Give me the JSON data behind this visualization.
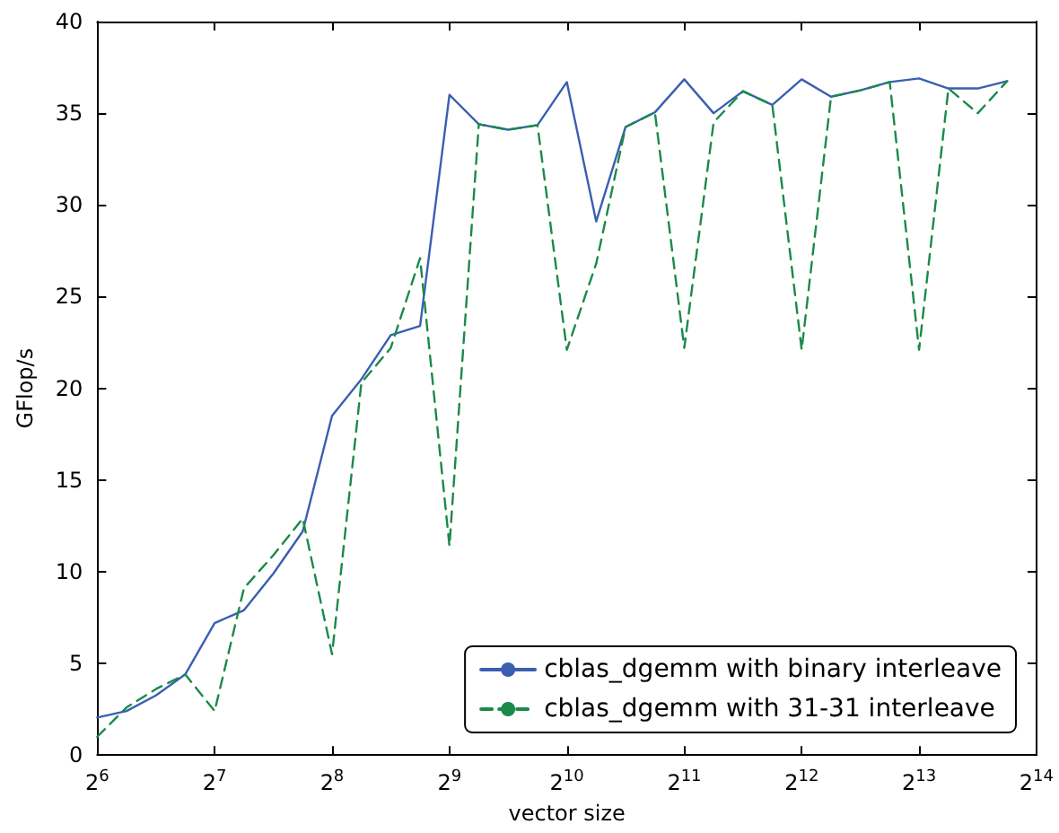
{
  "chart_data": {
    "type": "line",
    "xlabel": "vector size",
    "ylabel": "GFlop/s",
    "x": [
      64,
      76.1,
      90.5,
      107.6,
      128,
      152.2,
      181.0,
      215.3,
      256,
      304.4,
      362.0,
      430.5,
      512,
      608.9,
      724.1,
      861.1,
      1024,
      1217.7,
      1448.2,
      1722.2,
      2048,
      2435.5,
      2896.3,
      3444.3,
      4096,
      4871.0,
      5792.6,
      6888.6,
      8192,
      9741.9,
      11585.2,
      13777.2
    ],
    "series": [
      {
        "name": "cblas_dgemm with binary interleave",
        "color": "#3a5fb0",
        "line_style": "solid",
        "values": [
          2.05,
          2.4,
          3.25,
          4.4,
          7.2,
          7.9,
          9.9,
          12.2,
          18.5,
          20.5,
          22.9,
          23.4,
          36.0,
          34.4,
          34.1,
          34.35,
          36.7,
          29.1,
          34.25,
          35.05,
          36.85,
          35.0,
          36.2,
          35.45,
          36.85,
          35.9,
          36.25,
          36.7,
          36.9,
          36.35,
          36.35,
          36.75
        ]
      },
      {
        "name": "cblas_dgemm with 31-31 interleave",
        "color": "#1a8a4a",
        "line_style": "dashed",
        "values": [
          1.0,
          2.6,
          3.6,
          4.4,
          2.4,
          9.1,
          10.9,
          12.9,
          5.5,
          20.3,
          22.2,
          27.1,
          11.4,
          34.4,
          34.1,
          34.35,
          22.1,
          26.8,
          34.25,
          35.05,
          22.2,
          34.5,
          36.2,
          35.45,
          22.1,
          35.9,
          36.25,
          36.7,
          22.1,
          36.35,
          35.0,
          36.75
        ]
      }
    ],
    "log": "x",
    "xlim": [
      64,
      16384
    ],
    "xticks": [
      {
        "value": 64,
        "label": "2$^{6}$"
      },
      {
        "value": 128,
        "label": "2$^{7}$"
      },
      {
        "value": 256,
        "label": "2$^{8}$"
      },
      {
        "value": 512,
        "label": "2$^{9}$"
      },
      {
        "value": 1024,
        "label": "2$^{10}$"
      },
      {
        "value": 2048,
        "label": "2$^{11}$"
      },
      {
        "value": 4096,
        "label": "2$^{12}$"
      },
      {
        "value": 8192,
        "label": "2$^{13}$"
      },
      {
        "value": 16384,
        "label": "2$^{14}$"
      }
    ],
    "ylim": [
      0,
      40
    ],
    "yticks": [
      0,
      5,
      10,
      15,
      20,
      25,
      30,
      35,
      40
    ],
    "grid": false,
    "legend": "bottom right",
    "marker": "none"
  }
}
